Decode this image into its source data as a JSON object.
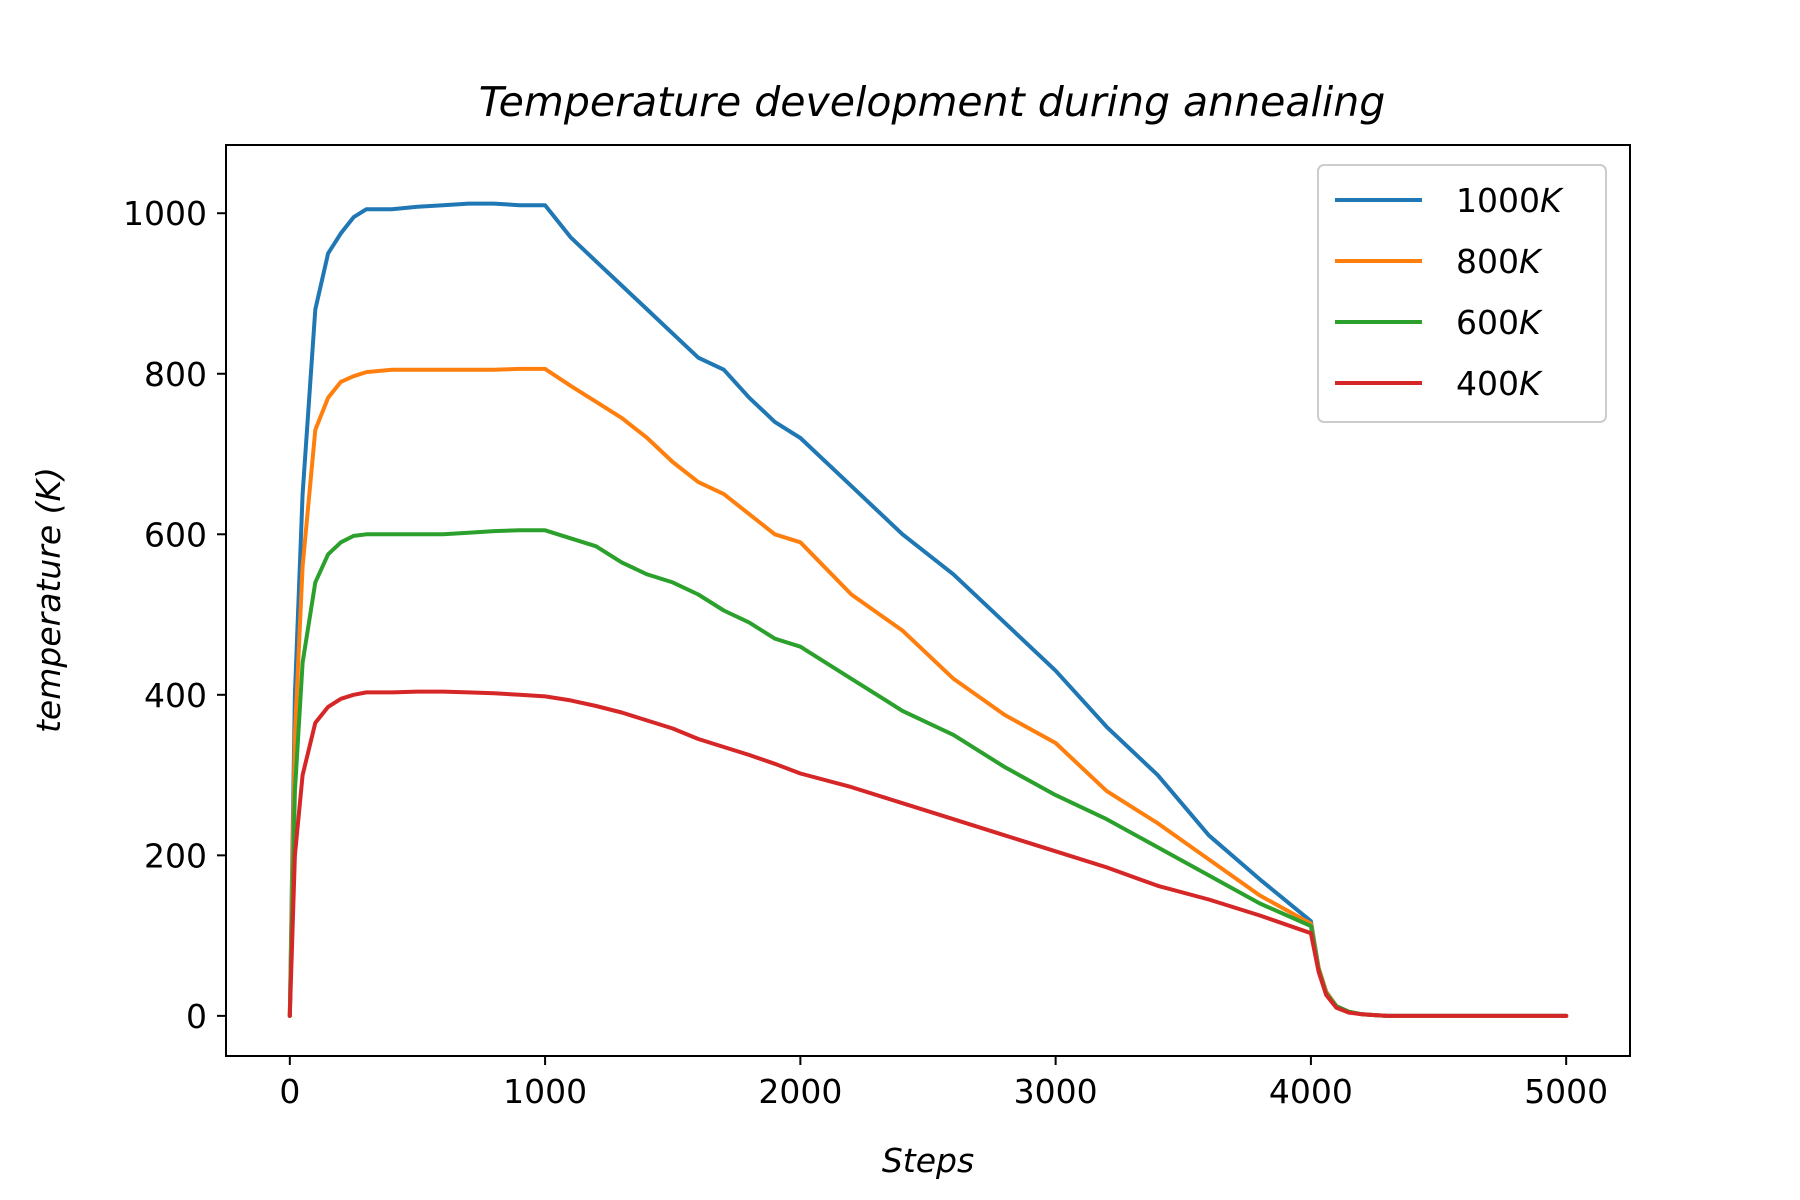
{
  "chart_data": {
    "type": "line",
    "title": "Temperature development during annealing",
    "xlabel": "Steps",
    "ylabel": "temperature (K)",
    "xlim": [
      -250,
      5250
    ],
    "ylim": [
      -50,
      1085
    ],
    "xticks": [
      0,
      1000,
      2000,
      3000,
      4000,
      5000
    ],
    "yticks": [
      0,
      200,
      400,
      600,
      800,
      1000
    ],
    "legend_position": "top-right",
    "series": [
      {
        "name": "1000K",
        "color": "#1f77b4",
        "x": [
          0,
          20,
          50,
          100,
          150,
          200,
          250,
          300,
          400,
          500,
          600,
          700,
          800,
          900,
          1000,
          1100,
          1200,
          1300,
          1400,
          1500,
          1600,
          1700,
          1800,
          1900,
          2000,
          2200,
          2400,
          2600,
          2800,
          3000,
          3200,
          3400,
          3600,
          3800,
          4000,
          4030,
          4060,
          4100,
          4150,
          4200,
          4250,
          4300,
          5000
        ],
        "y": [
          0,
          400,
          650,
          880,
          950,
          975,
          995,
          1005,
          1005,
          1008,
          1010,
          1012,
          1012,
          1010,
          1010,
          970,
          940,
          910,
          880,
          850,
          820,
          805,
          770,
          740,
          720,
          660,
          600,
          550,
          490,
          430,
          360,
          300,
          225,
          170,
          118,
          60,
          30,
          12,
          5,
          2,
          1,
          0,
          0
        ]
      },
      {
        "name": "800K",
        "color": "#ff7f0e",
        "x": [
          0,
          20,
          50,
          100,
          150,
          200,
          250,
          300,
          400,
          500,
          600,
          700,
          800,
          900,
          1000,
          1100,
          1200,
          1300,
          1400,
          1500,
          1600,
          1700,
          1800,
          1900,
          2000,
          2200,
          2400,
          2600,
          2800,
          3000,
          3200,
          3400,
          3600,
          3800,
          4000,
          4030,
          4060,
          4100,
          4150,
          4200,
          4250,
          4300,
          5000
        ],
        "y": [
          0,
          350,
          560,
          730,
          770,
          790,
          797,
          802,
          805,
          805,
          805,
          805,
          805,
          806,
          806,
          785,
          765,
          745,
          720,
          690,
          665,
          650,
          625,
          600,
          590,
          525,
          480,
          420,
          375,
          340,
          280,
          240,
          195,
          150,
          115,
          60,
          30,
          12,
          5,
          2,
          1,
          0,
          0
        ]
      },
      {
        "name": "600K",
        "color": "#2ca02c",
        "x": [
          0,
          20,
          50,
          100,
          150,
          200,
          250,
          300,
          400,
          500,
          600,
          700,
          800,
          900,
          1000,
          1100,
          1200,
          1300,
          1400,
          1500,
          1600,
          1700,
          1800,
          1900,
          2000,
          2200,
          2400,
          2600,
          2800,
          3000,
          3200,
          3400,
          3600,
          3800,
          4000,
          4030,
          4060,
          4100,
          4150,
          4200,
          4250,
          4300,
          5000
        ],
        "y": [
          0,
          280,
          440,
          540,
          575,
          590,
          598,
          600,
          600,
          600,
          600,
          602,
          604,
          605,
          605,
          595,
          585,
          565,
          550,
          540,
          525,
          505,
          490,
          470,
          460,
          420,
          380,
          350,
          310,
          275,
          245,
          210,
          175,
          140,
          112,
          58,
          28,
          12,
          5,
          2,
          1,
          0,
          0
        ]
      },
      {
        "name": "400K",
        "color": "#d62728",
        "x": [
          0,
          20,
          50,
          100,
          150,
          200,
          250,
          300,
          400,
          500,
          600,
          700,
          800,
          900,
          1000,
          1100,
          1200,
          1300,
          1400,
          1500,
          1600,
          1700,
          1800,
          1900,
          2000,
          2200,
          2400,
          2600,
          2800,
          3000,
          3200,
          3400,
          3600,
          3800,
          4000,
          4030,
          4060,
          4100,
          4150,
          4200,
          4250,
          4300,
          5000
        ],
        "y": [
          0,
          200,
          300,
          365,
          385,
          395,
          400,
          403,
          403,
          404,
          404,
          403,
          402,
          400,
          398,
          393,
          386,
          378,
          368,
          358,
          345,
          335,
          325,
          314,
          302,
          285,
          265,
          245,
          225,
          205,
          185,
          162,
          145,
          125,
          103,
          55,
          26,
          10,
          4,
          2,
          1,
          0,
          0
        ]
      }
    ]
  }
}
